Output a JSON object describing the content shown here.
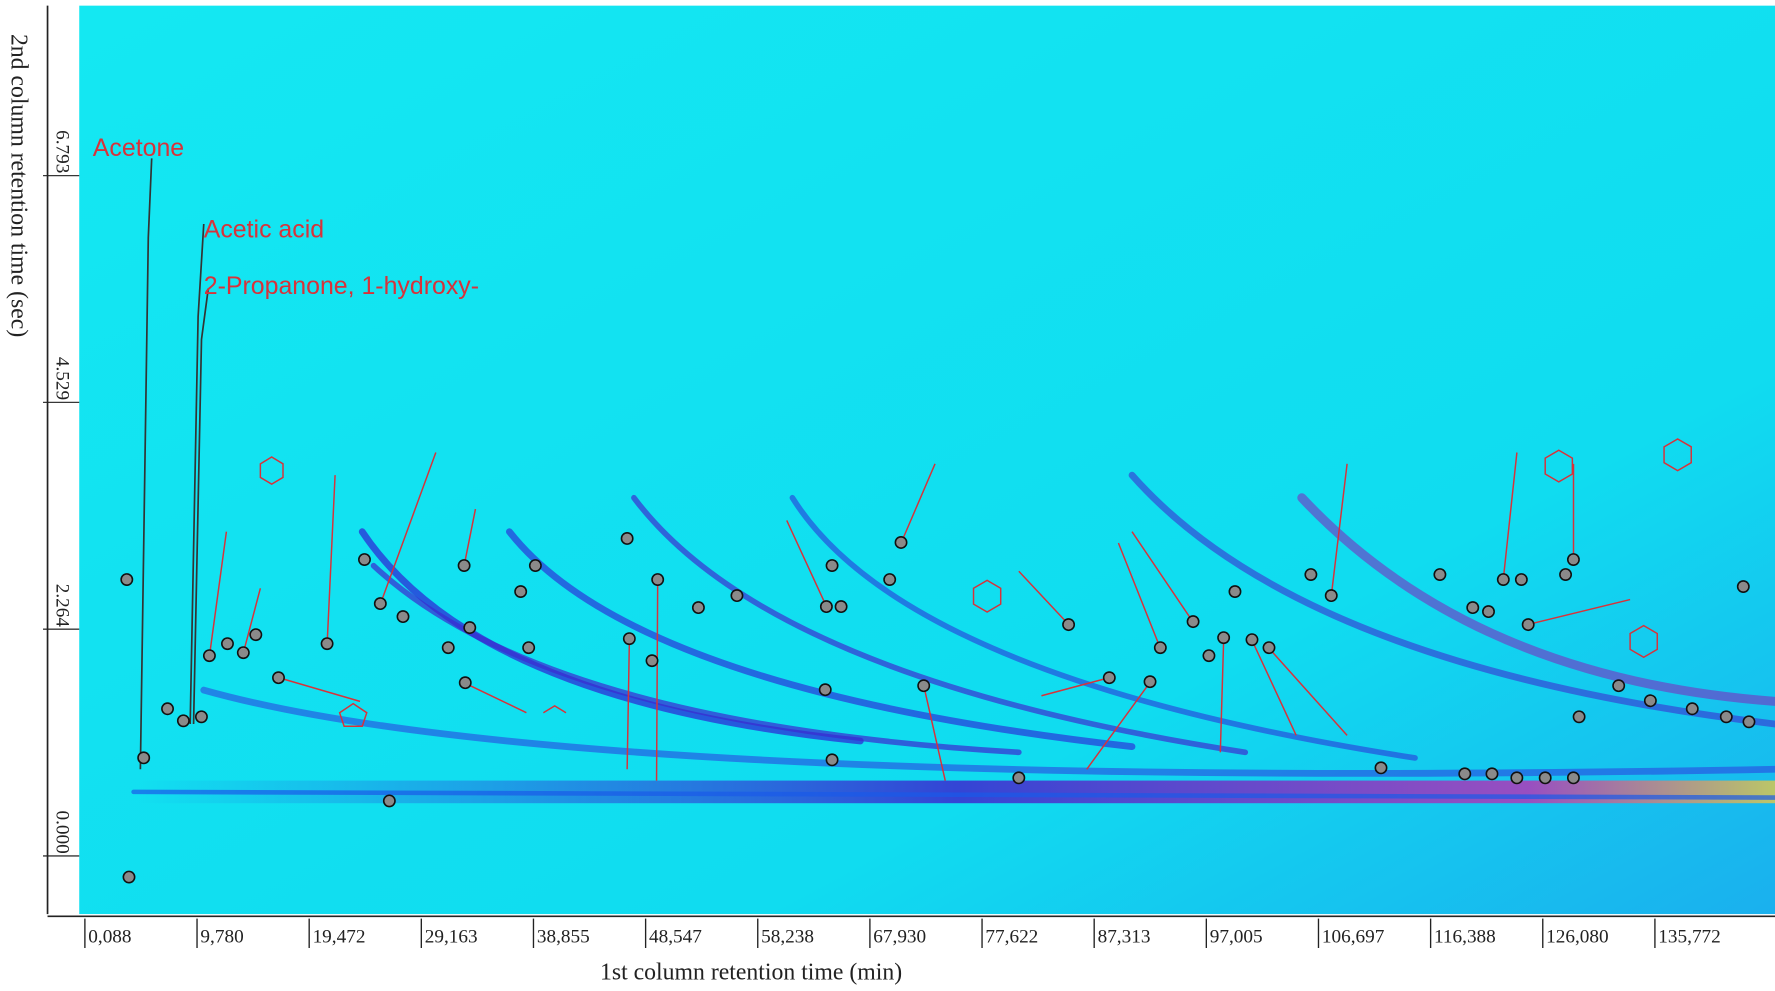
{
  "chart_data": {
    "type": "scatter",
    "xlabel": "1st column retention time (min)",
    "ylabel": "2nd column retention time (sec)",
    "xlim": [
      -0.4,
      146.15
    ],
    "ylim": [
      -0.58,
      8.49
    ],
    "xticks": [
      {
        "value": 0.088,
        "label": "0,088"
      },
      {
        "value": 9.78,
        "label": "9,780"
      },
      {
        "value": 19.472,
        "label": "19,472"
      },
      {
        "value": 29.163,
        "label": "29,163"
      },
      {
        "value": 38.855,
        "label": "38,855"
      },
      {
        "value": 48.547,
        "label": "48,547"
      },
      {
        "value": 58.238,
        "label": "58,238"
      },
      {
        "value": 67.93,
        "label": "67,930"
      },
      {
        "value": 77.622,
        "label": "77,622"
      },
      {
        "value": 87.313,
        "label": "87,313"
      },
      {
        "value": 97.005,
        "label": "97,005"
      },
      {
        "value": 106.697,
        "label": "106,697"
      },
      {
        "value": 116.388,
        "label": "116,388"
      },
      {
        "value": 126.08,
        "label": "126,080"
      },
      {
        "value": 135.772,
        "label": "135,772"
      }
    ],
    "yticks": [
      {
        "value": 0,
        "label": "0.000"
      },
      2.264,
      4.529,
      6.793
    ],
    "annotations": [
      "Acetone",
      "Acetic acid",
      "2-Propanone, 1-hydroxy-"
    ],
    "color": "#8a8a8a",
    "x": [
      3.71,
      3.9,
      5.17,
      7.23,
      8.6,
      10.16,
      10.85,
      12.41,
      13.78,
      14.86,
      16.82,
      21.02,
      24.25,
      25.62,
      27.58,
      26.4,
      31.49,
      32.86,
      33.35,
      32.96,
      37.75,
      38.44,
      39.02,
      47.14,
      46.95,
      49.1,
      49.59,
      53.11,
      56.44,
      64.07,
      64.17,
      64.66,
      65.44,
      69.64,
      70.62,
      72.58,
      85.1,
      88.62,
      92.14,
      93.03,
      95.86,
      97.23,
      98.5,
      99.48,
      100.95,
      102.42,
      106.04,
      107.8,
      112.1,
      117.19,
      120.03,
      121.39,
      122.67,
      124.23,
      124.82,
      128.05,
      128.73,
      129.22,
      132.64,
      119.34,
      121.69,
      123.84,
      126.29,
      128.73,
      135.38,
      139.0,
      141.94,
      143.41,
      143.9,
      80.8,
      64.66
    ],
    "values": [
      2.76,
      -0.21,
      0.98,
      1.47,
      1.35,
      1.39,
      2.0,
      2.12,
      2.03,
      2.21,
      1.78,
      2.12,
      2.96,
      2.52,
      2.39,
      0.55,
      2.08,
      2.9,
      2.28,
      1.73,
      2.64,
      2.08,
      2.9,
      2.17,
      3.17,
      1.95,
      2.76,
      2.48,
      2.6,
      1.66,
      2.49,
      2.9,
      2.49,
      2.76,
      3.13,
      1.7,
      2.31,
      1.78,
      1.74,
      2.08,
      2.34,
      2.0,
      2.18,
      2.64,
      2.16,
      2.08,
      2.81,
      2.6,
      0.88,
      2.81,
      2.48,
      2.44,
      2.76,
      2.76,
      2.31,
      2.81,
      2.96,
      1.39,
      1.7,
      0.82,
      0.82,
      0.78,
      0.78,
      0.78,
      1.55,
      1.47,
      1.39,
      2.69,
      1.34,
      0.78,
      0.96
    ]
  }
}
